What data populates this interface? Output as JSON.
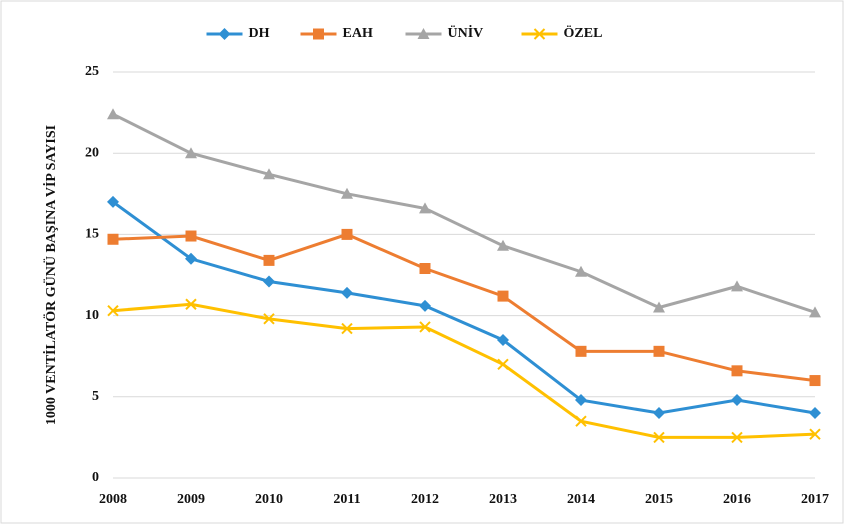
{
  "chart_data": {
    "type": "line",
    "y_label": "1000 VENTİLATÖR GÜNÜ BAŞINA VİP SAYISI",
    "categories": [
      "2008",
      "2009",
      "2010",
      "2011",
      "2012",
      "2013",
      "2014",
      "2015",
      "2016",
      "2017"
    ],
    "series": [
      {
        "name": "DH",
        "color": "#2e8fd3",
        "marker": "diamond",
        "values": [
          17.0,
          13.5,
          12.1,
          11.4,
          10.6,
          8.5,
          4.8,
          4.0,
          4.8,
          4.0
        ]
      },
      {
        "name": "EAH",
        "color": "#ed7d31",
        "marker": "square",
        "values": [
          14.7,
          14.9,
          13.4,
          15.0,
          12.9,
          11.2,
          7.8,
          7.8,
          6.6,
          6.0
        ]
      },
      {
        "name": "ÜNİV",
        "color": "#a5a5a5",
        "marker": "triangle",
        "values": [
          22.4,
          20.0,
          18.7,
          17.5,
          16.6,
          14.3,
          12.7,
          10.5,
          11.8,
          10.2
        ]
      },
      {
        "name": "ÖZEL",
        "color": "#ffc000",
        "marker": "x",
        "values": [
          10.3,
          10.7,
          9.8,
          9.2,
          9.3,
          7.0,
          3.5,
          2.5,
          2.5,
          2.7
        ]
      }
    ],
    "ylim": [
      0,
      25
    ],
    "yticks": [
      0,
      5,
      10,
      15,
      20,
      25
    ],
    "grid": true,
    "legend": "top"
  }
}
